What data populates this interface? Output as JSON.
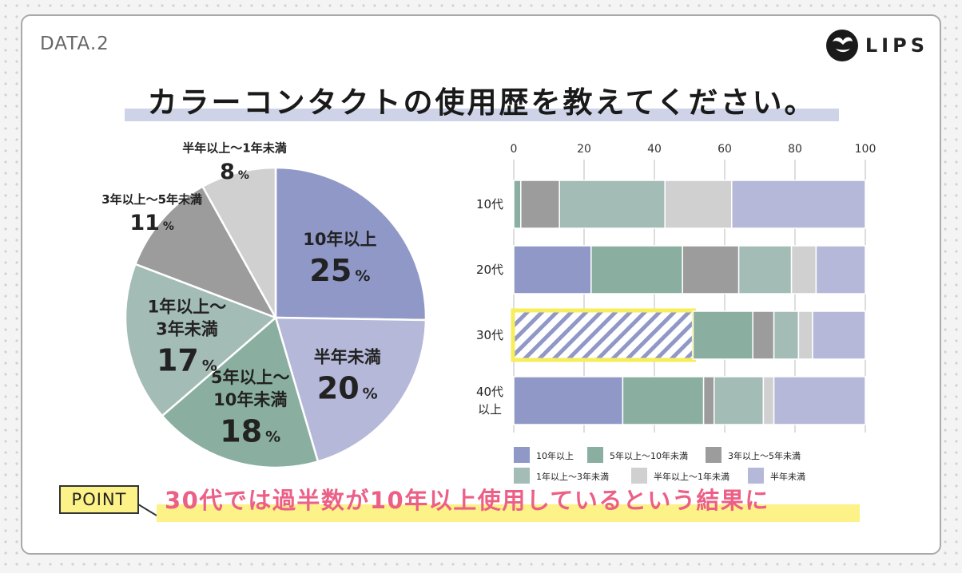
{
  "header": {
    "data_label": "DATA.2",
    "logo_text": "LIPS"
  },
  "title": "カラーコンタクトの使用歴を教えてください。",
  "point": {
    "label": "POINT",
    "text": "30代では過半数が10年以上使用しているという結果に"
  },
  "colors": {
    "10y": "#9098c8",
    "5to10y": "#8aafa0",
    "3to5y": "#9c9c9c",
    "1to3y": "#a3bcb6",
    "halfto1y": "#d0d0d0",
    "lthalf": "#b5b8d8",
    "highlight": "#f7ee5b",
    "accent": "#ec5f86"
  },
  "chart_data": [
    {
      "type": "pie",
      "title": "",
      "slices": [
        {
          "label": "10年以上",
          "value": 25,
          "color_key": "10y"
        },
        {
          "label": "半年未満",
          "value": 20,
          "color_key": "lthalf"
        },
        {
          "label": "5年以上～10年未満",
          "value": 18,
          "color_key": "5to10y"
        },
        {
          "label": "1年以上～3年未満",
          "value": 17,
          "color_key": "1to3y"
        },
        {
          "label": "3年以上～5年未満",
          "value": 11,
          "color_key": "3to5y"
        },
        {
          "label": "半年以上～1年未満",
          "value": 8,
          "color_key": "halfto1y"
        }
      ],
      "label_lines": [
        [
          "10年以上"
        ],
        [
          "半年未満"
        ],
        [
          "5年以上～",
          "10年未満"
        ],
        [
          "1年以上～",
          "3年未満"
        ],
        [
          "3年以上～5年未満"
        ],
        [
          "半年以上～1年未満"
        ]
      ],
      "unit": "%"
    },
    {
      "type": "bar",
      "orientation": "horizontal",
      "stacked": true,
      "categories": [
        "10代",
        "20代",
        "30代",
        "40代以上"
      ],
      "category_lines": [
        [
          "10代"
        ],
        [
          "20代"
        ],
        [
          "30代"
        ],
        [
          "40代",
          "以上"
        ]
      ],
      "xlim": [
        0,
        100
      ],
      "xticks": [
        0,
        20,
        40,
        60,
        80,
        100
      ],
      "grid": true,
      "highlight": {
        "category": "30代",
        "series": "10年以上"
      },
      "series": [
        {
          "name": "10年以上",
          "color_key": "10y",
          "values": [
            0,
            22,
            51,
            31
          ]
        },
        {
          "name": "5年以上～10年未満",
          "color_key": "5to10y",
          "values": [
            2,
            26,
            17,
            23
          ]
        },
        {
          "name": "3年以上～5年未満",
          "color_key": "3to5y",
          "values": [
            11,
            16,
            6,
            3
          ]
        },
        {
          "name": "1年以上～3年未満",
          "color_key": "1to3y",
          "values": [
            30,
            15,
            7,
            14
          ]
        },
        {
          "name": "半年以上～1年未満",
          "color_key": "halfto1y",
          "values": [
            19,
            7,
            4,
            3
          ]
        },
        {
          "name": "半年未満",
          "color_key": "lthalf",
          "values": [
            38,
            14,
            15,
            26
          ]
        }
      ],
      "legend_labels": [
        "10年以上",
        "5年以上～10年未満",
        "3年以上～5年未満",
        "1年以上～3年未満",
        "半年以上～1年未満",
        "半年未満"
      ],
      "legend_position": "bottom"
    }
  ]
}
